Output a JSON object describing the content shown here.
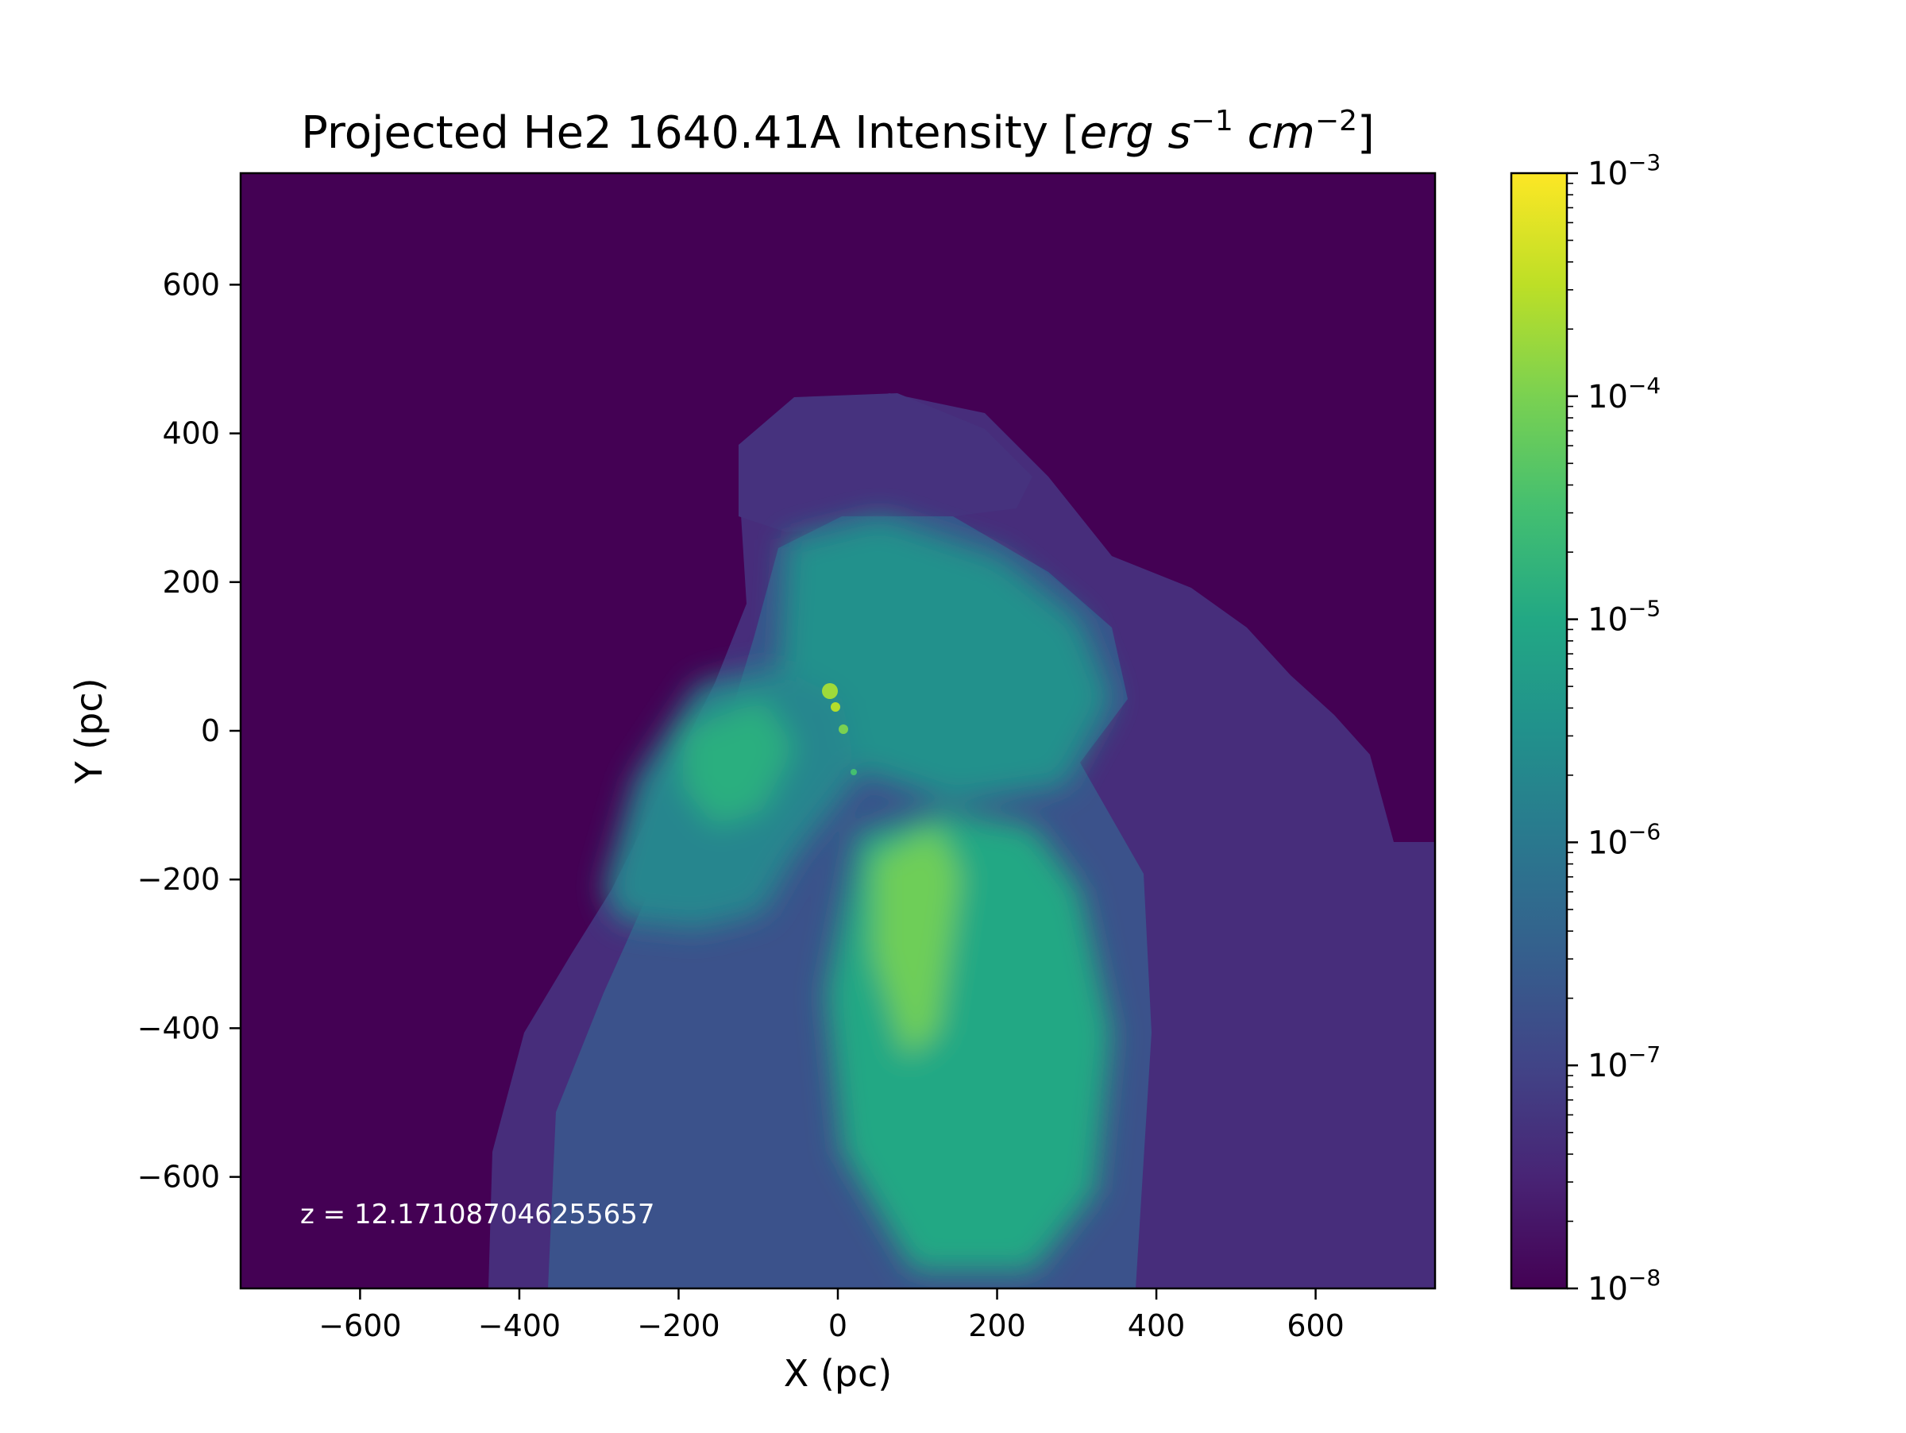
{
  "chart_data": {
    "type": "heatmap",
    "title": "Projected He2 1640.41A Intensity",
    "title_units_prefix": "[",
    "title_unit_erg": "erg",
    "title_unit_s": "s",
    "title_exp_s": "−1",
    "title_unit_cm": "cm",
    "title_exp_cm": "−2",
    "title_units_suffix": "]",
    "xlabel": "X (pc)",
    "ylabel": "Y (pc)",
    "xlim": [
      -750,
      750
    ],
    "ylim": [
      -750,
      750
    ],
    "xticks": [
      -600,
      -400,
      -200,
      0,
      200,
      400,
      600
    ],
    "yticks": [
      -600,
      -400,
      -200,
      0,
      200,
      400,
      600
    ],
    "colorbar": {
      "scale": "log",
      "range": [
        1e-08,
        0.001
      ],
      "colormap": "viridis",
      "ticks": [
        {
          "value": 1e-08,
          "base": "10",
          "exp": "−8"
        },
        {
          "value": 1e-07,
          "base": "10",
          "exp": "−7"
        },
        {
          "value": 1e-06,
          "base": "10",
          "exp": "−6"
        },
        {
          "value": 1e-05,
          "base": "10",
          "exp": "−5"
        },
        {
          "value": 0.0001,
          "base": "10",
          "exp": "−4"
        },
        {
          "value": 0.001,
          "base": "10",
          "exp": "−3"
        }
      ]
    },
    "annotation": "z = 12.171087046255657",
    "background_value": 1e-08
  }
}
